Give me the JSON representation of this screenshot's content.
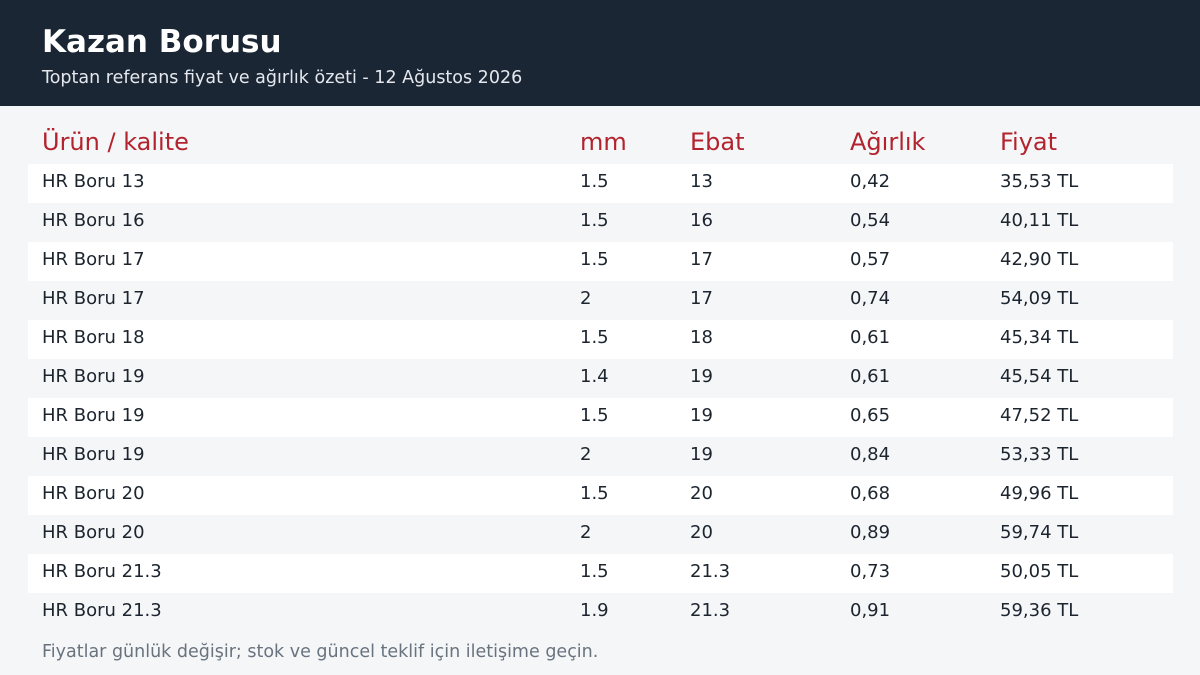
{
  "header": {
    "title": "Kazan Borusu",
    "subtitle": "Toptan referans fiyat ve ağırlık özeti - 12 Ağustos 2026"
  },
  "table": {
    "columns": [
      "Ürün / kalite",
      "mm",
      "Ebat",
      "Ağırlık",
      "Fiyat"
    ],
    "rows": [
      [
        "HR Boru 13",
        "1.5",
        "13",
        "0,42",
        "35,53 TL"
      ],
      [
        "HR Boru 16",
        "1.5",
        "16",
        "0,54",
        "40,11 TL"
      ],
      [
        "HR Boru 17",
        "1.5",
        "17",
        "0,57",
        "42,90 TL"
      ],
      [
        "HR Boru 17",
        "2",
        "17",
        "0,74",
        "54,09 TL"
      ],
      [
        "HR Boru 18",
        "1.5",
        "18",
        "0,61",
        "45,34 TL"
      ],
      [
        "HR Boru 19",
        "1.4",
        "19",
        "0,61",
        "45,54 TL"
      ],
      [
        "HR Boru 19",
        "1.5",
        "19",
        "0,65",
        "47,52 TL"
      ],
      [
        "HR Boru 19",
        "2",
        "19",
        "0,84",
        "53,33 TL"
      ],
      [
        "HR Boru 20",
        "1.5",
        "20",
        "0,68",
        "49,96 TL"
      ],
      [
        "HR Boru 20",
        "2",
        "20",
        "0,89",
        "59,74 TL"
      ],
      [
        "HR Boru 21.3",
        "1.5",
        "21.3",
        "0,73",
        "50,05 TL"
      ],
      [
        "HR Boru 21.3",
        "1.9",
        "21.3",
        "0,91",
        "59,36 TL"
      ]
    ]
  },
  "footer": {
    "note": "Fiyatlar günlük değişir; stok ve güncel teklif için iletişime geçin."
  },
  "colors": {
    "header_bg": "#1b2634",
    "accent": "#b3232e",
    "page_bg": "#f4f6f8"
  }
}
